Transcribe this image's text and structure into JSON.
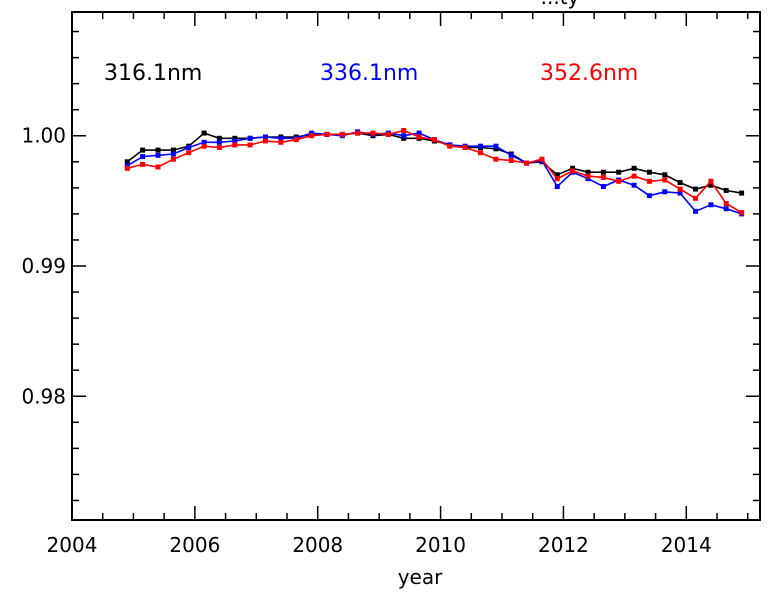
{
  "chart_data": {
    "type": "line",
    "title": "...ty",
    "xlabel": "year",
    "ylabel": "",
    "xlim": [
      2004,
      2015.2
    ],
    "ylim": [
      0.9705,
      1.0095
    ],
    "x_ticks": [
      2004,
      2006,
      2008,
      2010,
      2012,
      2014
    ],
    "x_tick_labels": [
      "2004",
      "2006",
      "2008",
      "2010",
      "2012",
      "2014"
    ],
    "y_ticks": [
      0.98,
      0.99,
      1.0
    ],
    "y_tick_labels": [
      "0.98",
      "0.99",
      "1.00"
    ],
    "grid": false,
    "legend_placement": "top",
    "series": [
      {
        "name": "316.1nm",
        "color": "#000000",
        "x": [
          2004.9,
          2005.15,
          2005.4,
          2005.65,
          2005.9,
          2006.15,
          2006.4,
          2006.65,
          2006.9,
          2007.15,
          2007.4,
          2007.65,
          2007.9,
          2008.15,
          2008.4,
          2008.65,
          2008.9,
          2009.15,
          2009.4,
          2009.65,
          2009.9,
          2010.15,
          2010.4,
          2010.65,
          2010.9,
          2011.15,
          2011.4,
          2011.65,
          2011.9,
          2012.15,
          2012.4,
          2012.65,
          2012.9,
          2013.15,
          2013.4,
          2013.65,
          2013.9,
          2014.15,
          2014.4,
          2014.65,
          2014.9
        ],
        "values": [
          0.998,
          0.9989,
          0.9989,
          0.9989,
          0.9992,
          1.0002,
          0.9998,
          0.9998,
          0.9998,
          0.9999,
          0.9999,
          0.9999,
          1.0001,
          1.0001,
          1.0001,
          1.0002,
          1.0,
          1.0001,
          0.9998,
          0.9998,
          0.9996,
          0.9993,
          0.9991,
          0.9991,
          0.999,
          0.9986,
          0.9979,
          0.998,
          0.997,
          0.9975,
          0.9972,
          0.9972,
          0.9972,
          0.9975,
          0.9972,
          0.997,
          0.9964,
          0.9959,
          0.9962,
          0.9958,
          0.9956
        ]
      },
      {
        "name": "336.1nm",
        "color": "#0000ff",
        "x": [
          2004.9,
          2005.15,
          2005.4,
          2005.65,
          2005.9,
          2006.15,
          2006.4,
          2006.65,
          2006.9,
          2007.15,
          2007.4,
          2007.65,
          2007.9,
          2008.15,
          2008.4,
          2008.65,
          2008.9,
          2009.15,
          2009.4,
          2009.65,
          2009.9,
          2010.15,
          2010.4,
          2010.65,
          2010.9,
          2011.15,
          2011.4,
          2011.65,
          2011.9,
          2012.15,
          2012.4,
          2012.65,
          2012.9,
          2013.15,
          2013.4,
          2013.65,
          2013.9,
          2014.15,
          2014.4,
          2014.65,
          2014.9
        ],
        "values": [
          0.9977,
          0.9984,
          0.9985,
          0.9986,
          0.9991,
          0.9995,
          0.9995,
          0.9996,
          0.9998,
          0.9999,
          0.9998,
          0.9998,
          1.0002,
          1.0001,
          1.0,
          1.0003,
          1.0001,
          1.0002,
          1.0,
          1.0002,
          0.9997,
          0.9993,
          0.9992,
          0.9992,
          0.9992,
          0.9985,
          0.9979,
          0.9981,
          0.9961,
          0.9972,
          0.9967,
          0.9961,
          0.9966,
          0.9962,
          0.9954,
          0.9957,
          0.9956,
          0.9942,
          0.9947,
          0.9944,
          0.994
        ]
      },
      {
        "name": "352.6nm",
        "color": "#ff0000",
        "x": [
          2004.9,
          2005.15,
          2005.4,
          2005.65,
          2005.9,
          2006.15,
          2006.4,
          2006.65,
          2006.9,
          2007.15,
          2007.4,
          2007.65,
          2007.9,
          2008.15,
          2008.4,
          2008.65,
          2008.9,
          2009.15,
          2009.4,
          2009.65,
          2009.9,
          2010.15,
          2010.4,
          2010.65,
          2010.9,
          2011.15,
          2011.4,
          2011.65,
          2011.9,
          2012.15,
          2012.4,
          2012.65,
          2012.9,
          2013.15,
          2013.4,
          2013.65,
          2013.9,
          2014.15,
          2014.4,
          2014.65,
          2014.9
        ],
        "values": [
          0.9975,
          0.9978,
          0.9976,
          0.9982,
          0.9987,
          0.9992,
          0.9991,
          0.9993,
          0.9993,
          0.9996,
          0.9995,
          0.9997,
          1.0,
          1.0001,
          1.0001,
          1.0002,
          1.0002,
          1.0001,
          1.0004,
          0.9999,
          0.9997,
          0.9992,
          0.9991,
          0.9987,
          0.9982,
          0.9981,
          0.9979,
          0.9982,
          0.9967,
          0.9973,
          0.9969,
          0.9968,
          0.9965,
          0.9969,
          0.9965,
          0.9966,
          0.9959,
          0.9952,
          0.9965,
          0.9948,
          0.9941
        ]
      }
    ]
  }
}
